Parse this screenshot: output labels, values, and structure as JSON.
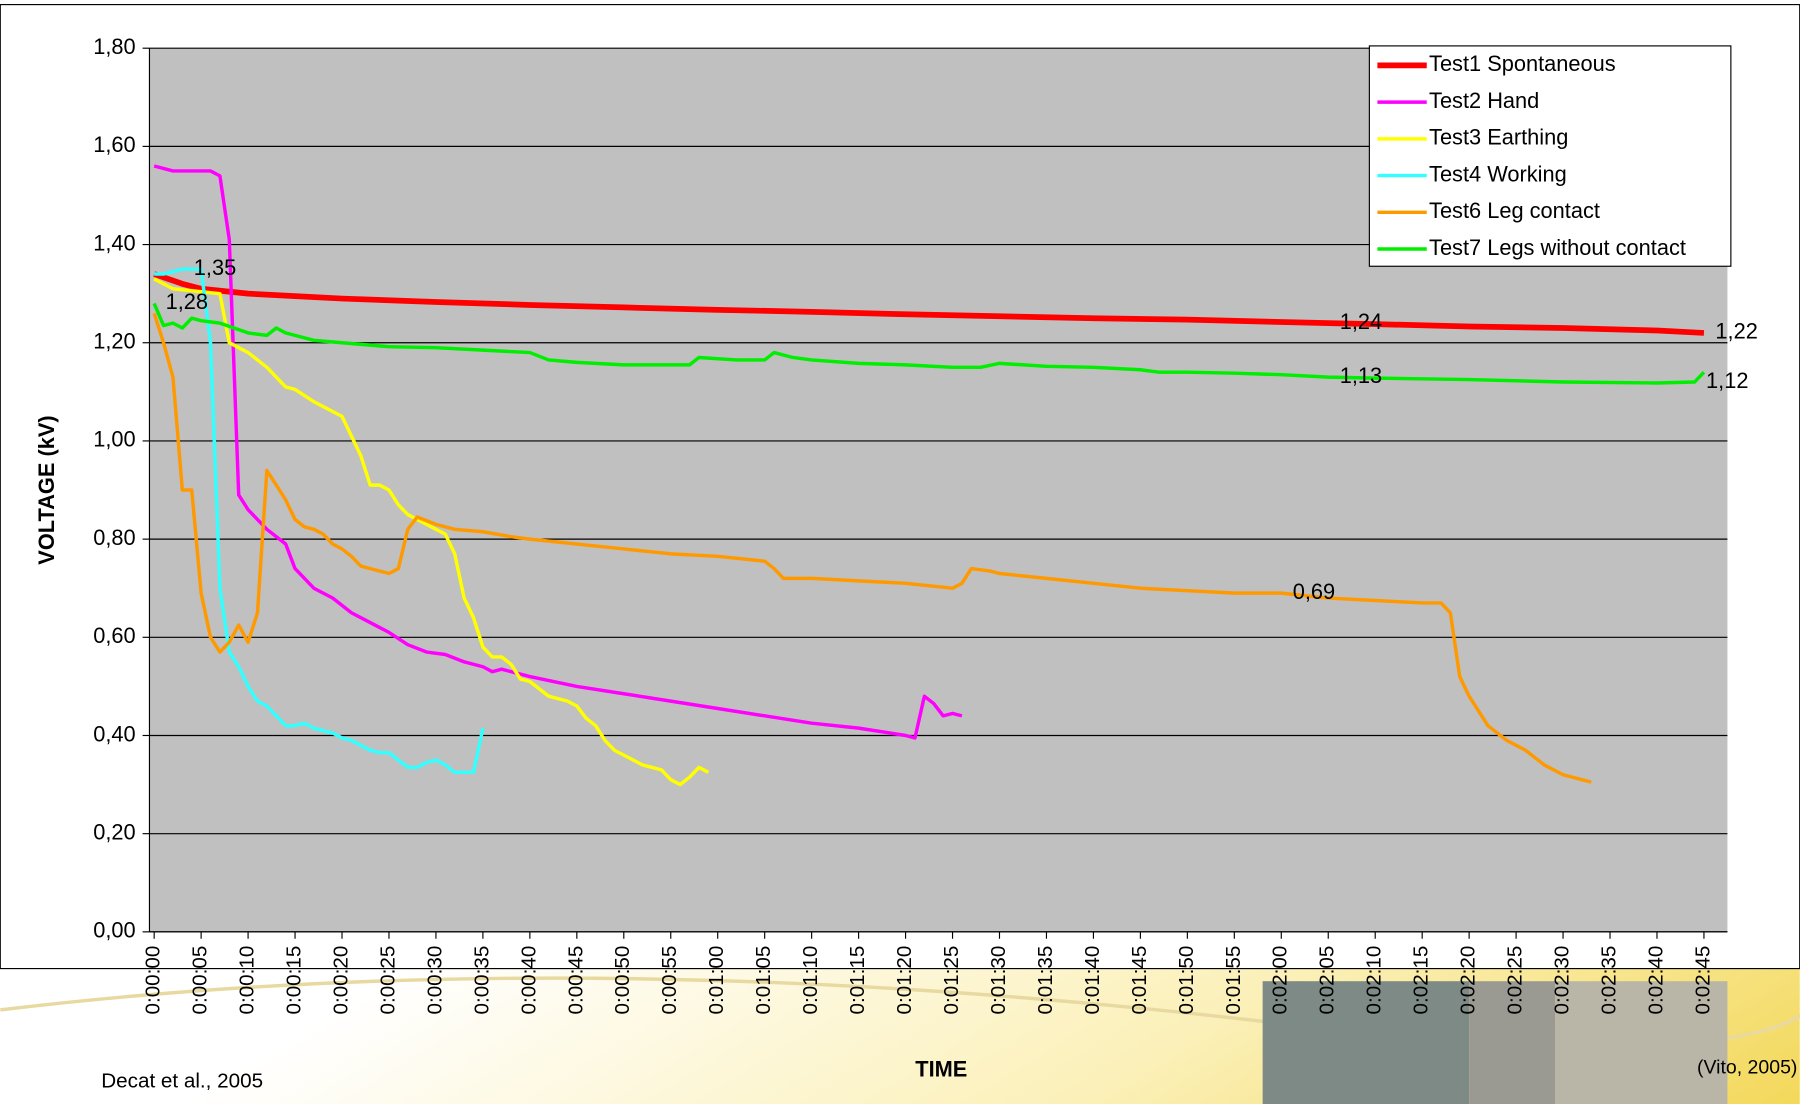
{
  "chart_data": {
    "type": "line",
    "x_label": "TIME",
    "y_label": "VOLTAGE (kV)",
    "source_left": "Decat et al., 2005",
    "source_right": "(Vito, 2005)",
    "xlim": [
      -0.5,
      167.5
    ],
    "ylim": [
      0,
      1.8
    ],
    "grid": true,
    "legend": "top-right",
    "yticks": [
      {
        "value": 0,
        "label": "0,00"
      },
      {
        "value": 0.2,
        "label": "0,20"
      },
      {
        "value": 0.4,
        "label": "0,40"
      },
      {
        "value": 0.6,
        "label": "0,60"
      },
      {
        "value": 0.8,
        "label": "0,80"
      },
      {
        "value": 1.0,
        "label": "1,00"
      },
      {
        "value": 1.2,
        "label": "1,20"
      },
      {
        "value": 1.4,
        "label": "1,40"
      },
      {
        "value": 1.6,
        "label": "1,60"
      },
      {
        "value": 1.8,
        "label": "1,80"
      }
    ],
    "xticks": [
      {
        "value": 0,
        "label": "0:00:00"
      },
      {
        "value": 5,
        "label": "0:00:05"
      },
      {
        "value": 10,
        "label": "0:00:10"
      },
      {
        "value": 15,
        "label": "0:00:15"
      },
      {
        "value": 20,
        "label": "0:00:20"
      },
      {
        "value": 25,
        "label": "0:00:25"
      },
      {
        "value": 30,
        "label": "0:00:30"
      },
      {
        "value": 35,
        "label": "0:00:35"
      },
      {
        "value": 40,
        "label": "0:00:40"
      },
      {
        "value": 45,
        "label": "0:00:45"
      },
      {
        "value": 50,
        "label": "0:00:50"
      },
      {
        "value": 55,
        "label": "0:00:55"
      },
      {
        "value": 60,
        "label": "0:01:00"
      },
      {
        "value": 65,
        "label": "0:01:05"
      },
      {
        "value": 70,
        "label": "0:01:10"
      },
      {
        "value": 75,
        "label": "0:01:15"
      },
      {
        "value": 80,
        "label": "0:01:20"
      },
      {
        "value": 85,
        "label": "0:01:25"
      },
      {
        "value": 90,
        "label": "0:01:30"
      },
      {
        "value": 95,
        "label": "0:01:35"
      },
      {
        "value": 100,
        "label": "0:01:40"
      },
      {
        "value": 105,
        "label": "0:01:45"
      },
      {
        "value": 110,
        "label": "0:01:50"
      },
      {
        "value": 115,
        "label": "0:01:55"
      },
      {
        "value": 120,
        "label": "0:02:00"
      },
      {
        "value": 125,
        "label": "0:02:05"
      },
      {
        "value": 130,
        "label": "0:02:10"
      },
      {
        "value": 135,
        "label": "0:02:15"
      },
      {
        "value": 140,
        "label": "0:02:20"
      },
      {
        "value": 145,
        "label": "0:02:25"
      },
      {
        "value": 150,
        "label": "0:02:30"
      },
      {
        "value": 155,
        "label": "0:02:35"
      },
      {
        "value": 160,
        "label": "0:02:40"
      },
      {
        "value": 165,
        "label": "0:02:45"
      }
    ],
    "series": [
      {
        "name": "Test1 Spontaneous",
        "color": "#ff0000",
        "width": 5,
        "x": [
          0,
          3,
          5,
          10,
          15,
          20,
          30,
          40,
          50,
          60,
          70,
          80,
          90,
          100,
          110,
          125,
          130,
          140,
          150,
          160,
          165
        ],
        "values": [
          1.34,
          1.32,
          1.31,
          1.3,
          1.295,
          1.29,
          1.283,
          1.277,
          1.272,
          1.267,
          1.263,
          1.258,
          1.254,
          1.25,
          1.247,
          1.24,
          1.238,
          1.233,
          1.23,
          1.225,
          1.22
        ],
        "value_labels": [
          null,
          null,
          null,
          null,
          null,
          null,
          null,
          null,
          null,
          null,
          null,
          null,
          null,
          null,
          null,
          "1,24",
          null,
          null,
          null,
          null,
          "1,22"
        ]
      },
      {
        "name": "Test2 Hand",
        "color": "#ff00ff",
        "width": 3,
        "x": [
          0,
          2,
          6,
          7,
          8,
          9,
          10,
          12,
          14,
          15,
          17,
          19,
          21,
          23,
          25,
          27,
          29,
          31,
          33,
          35,
          36,
          37,
          40,
          45,
          50,
          55,
          60,
          65,
          70,
          75,
          80,
          81,
          82,
          83,
          84,
          85,
          86
        ],
        "values": [
          1.56,
          1.55,
          1.55,
          1.54,
          1.41,
          0.89,
          0.86,
          0.82,
          0.79,
          0.74,
          0.7,
          0.68,
          0.65,
          0.63,
          0.61,
          0.585,
          0.57,
          0.565,
          0.55,
          0.54,
          0.53,
          0.535,
          0.52,
          0.5,
          0.485,
          0.47,
          0.455,
          0.44,
          0.425,
          0.415,
          0.4,
          0.395,
          0.48,
          0.465,
          0.44,
          0.445,
          0.44
        ]
      },
      {
        "name": "Test3 Earthing",
        "color": "#ffff00",
        "width": 3,
        "x": [
          0,
          2,
          7,
          8,
          10,
          12,
          14,
          15,
          17,
          19,
          20,
          22,
          23,
          24,
          25,
          26,
          27,
          29,
          31,
          32,
          33,
          34,
          35,
          36,
          37,
          38,
          39,
          40,
          41,
          42,
          44,
          45,
          46,
          47,
          48,
          49,
          51,
          52,
          54,
          55,
          56,
          57,
          58,
          59
        ],
        "values": [
          1.33,
          1.31,
          1.3,
          1.2,
          1.18,
          1.15,
          1.11,
          1.105,
          1.08,
          1.06,
          1.05,
          0.97,
          0.91,
          0.91,
          0.9,
          0.87,
          0.85,
          0.83,
          0.81,
          0.77,
          0.68,
          0.64,
          0.58,
          0.56,
          0.56,
          0.545,
          0.515,
          0.51,
          0.495,
          0.48,
          0.47,
          0.46,
          0.435,
          0.42,
          0.39,
          0.37,
          0.35,
          0.34,
          0.33,
          0.31,
          0.3,
          0.315,
          0.335,
          0.325
        ]
      },
      {
        "name": "Test4 Working",
        "color": "#33ffff",
        "width": 3,
        "x": [
          0,
          1,
          3,
          5,
          6,
          7,
          8,
          9,
          10,
          11,
          12,
          13,
          14,
          15,
          16,
          17,
          19,
          20,
          21,
          22,
          23,
          24,
          25,
          26,
          27,
          28,
          29,
          30,
          31,
          32,
          33,
          34,
          35
        ],
        "values": [
          1.34,
          1.34,
          1.35,
          1.35,
          1.2,
          0.7,
          0.57,
          0.54,
          0.5,
          0.47,
          0.46,
          0.44,
          0.42,
          0.42,
          0.425,
          0.415,
          0.405,
          0.395,
          0.39,
          0.38,
          0.37,
          0.365,
          0.365,
          0.35,
          0.335,
          0.335,
          0.345,
          0.35,
          0.34,
          0.325,
          0.325,
          0.325,
          0.415
        ],
        "value_labels": [
          null,
          null,
          "1,35",
          null,
          null,
          null,
          null,
          null,
          null,
          null,
          null,
          null,
          null,
          null,
          null,
          null,
          null,
          null,
          null,
          null,
          null,
          null,
          null,
          null,
          null,
          null,
          null,
          null,
          null,
          null,
          null,
          null,
          null
        ]
      },
      {
        "name": "Test6 Leg contact",
        "color": "#ff9900",
        "width": 3,
        "x": [
          0,
          1,
          2,
          3,
          4,
          5,
          6,
          7,
          8,
          9,
          10,
          11,
          12,
          13,
          14,
          15,
          16,
          17,
          18,
          19,
          20,
          21,
          22,
          24,
          25,
          26,
          27,
          28,
          30,
          32,
          35,
          38,
          40,
          45,
          50,
          55,
          60,
          65,
          66,
          67,
          70,
          75,
          80,
          85,
          86,
          87,
          89,
          90,
          95,
          100,
          105,
          110,
          115,
          120,
          125,
          130,
          135,
          137,
          138,
          139,
          140,
          142,
          144,
          146,
          148,
          150,
          152,
          153
        ],
        "values": [
          1.26,
          1.2,
          1.13,
          0.9,
          0.9,
          0.69,
          0.6,
          0.57,
          0.59,
          0.625,
          0.59,
          0.65,
          0.94,
          0.91,
          0.88,
          0.84,
          0.825,
          0.82,
          0.81,
          0.79,
          0.78,
          0.765,
          0.745,
          0.735,
          0.73,
          0.74,
          0.82,
          0.845,
          0.83,
          0.82,
          0.815,
          0.805,
          0.8,
          0.79,
          0.78,
          0.77,
          0.765,
          0.755,
          0.74,
          0.72,
          0.72,
          0.715,
          0.71,
          0.7,
          0.71,
          0.74,
          0.735,
          0.73,
          0.72,
          0.71,
          0.7,
          0.695,
          0.69,
          0.69,
          0.68,
          0.675,
          0.67,
          0.67,
          0.65,
          0.52,
          0.48,
          0.42,
          0.39,
          0.37,
          0.34,
          0.32,
          0.31,
          0.305
        ],
        "value_labels": [
          null,
          null,
          null,
          null,
          null,
          null,
          null,
          null,
          null,
          null,
          null,
          null,
          null,
          null,
          null,
          null,
          null,
          null,
          null,
          null,
          null,
          null,
          null,
          null,
          null,
          null,
          null,
          null,
          null,
          null,
          null,
          null,
          null,
          null,
          null,
          null,
          null,
          null,
          null,
          null,
          null,
          null,
          null,
          null,
          null,
          null,
          null,
          null,
          null,
          null,
          null,
          null,
          null,
          "0,69",
          null,
          null,
          null,
          null,
          null,
          null,
          null,
          null,
          null,
          null,
          null,
          null,
          null,
          null
        ]
      },
      {
        "name": "Test7 Legs without contact",
        "color": "#00ee00",
        "width": 3,
        "x": [
          0,
          1,
          2,
          3,
          4,
          5,
          7,
          10,
          12,
          13,
          14,
          15,
          17,
          20,
          25,
          30,
          35,
          40,
          42,
          45,
          50,
          55,
          57,
          58,
          62,
          65,
          66,
          68,
          70,
          75,
          80,
          85,
          88,
          90,
          95,
          100,
          105,
          107,
          110,
          115,
          120,
          125,
          130,
          140,
          150,
          160,
          164,
          165
        ],
        "values": [
          1.28,
          1.235,
          1.24,
          1.23,
          1.25,
          1.245,
          1.24,
          1.22,
          1.215,
          1.23,
          1.22,
          1.215,
          1.205,
          1.2,
          1.192,
          1.19,
          1.185,
          1.18,
          1.165,
          1.16,
          1.155,
          1.155,
          1.155,
          1.17,
          1.165,
          1.165,
          1.18,
          1.17,
          1.165,
          1.158,
          1.155,
          1.15,
          1.15,
          1.158,
          1.152,
          1.15,
          1.145,
          1.14,
          1.14,
          1.138,
          1.135,
          1.13,
          1.128,
          1.125,
          1.12,
          1.118,
          1.12,
          1.14
        ],
        "value_labels": [
          "1,28",
          null,
          null,
          null,
          null,
          null,
          null,
          null,
          null,
          null,
          null,
          null,
          null,
          null,
          null,
          null,
          null,
          null,
          null,
          null,
          null,
          null,
          null,
          null,
          null,
          null,
          null,
          null,
          null,
          null,
          null,
          null,
          null,
          null,
          null,
          null,
          null,
          null,
          null,
          null,
          null,
          "1,13",
          null,
          null,
          null,
          null,
          "1,12",
          null
        ]
      }
    ]
  }
}
